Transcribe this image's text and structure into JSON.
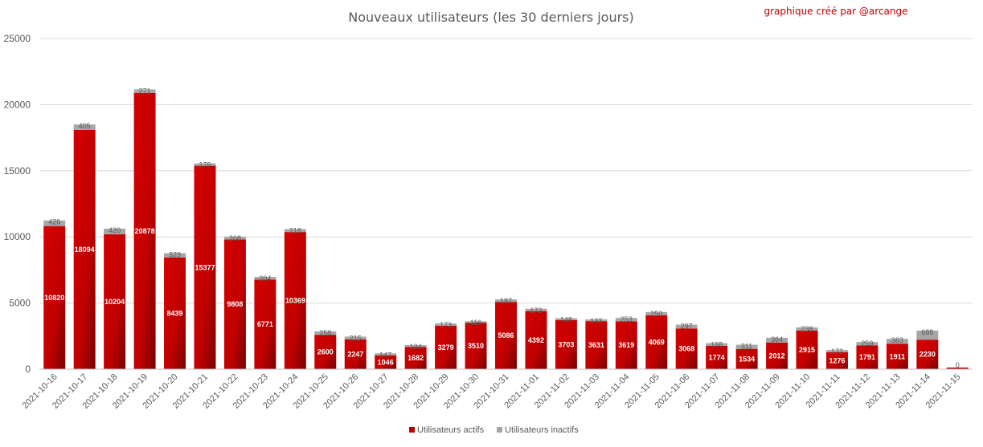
{
  "chart_data": {
    "type": "bar",
    "stacked": true,
    "title": "Nouveaux utilisateurs  (les 30 derniers  jours)",
    "annotation": "graphique créé par @arcange",
    "ylim": [
      0,
      25000
    ],
    "yticks": [
      0,
      5000,
      10000,
      15000,
      20000,
      25000
    ],
    "grid": true,
    "legend_position": "bottom",
    "categories": [
      "2021-10-16",
      "2021-10-17",
      "2021-10-18",
      "2021-10-19",
      "2021-10-20",
      "2021-10-21",
      "2021-10-22",
      "2021-10-23",
      "2021-10-24",
      "2021-10-25",
      "2021-10-26",
      "2021-10-27",
      "2021-10-28",
      "2021-10-29",
      "2021-10-30",
      "2021-10-31",
      "2021-11-01",
      "2021-11-02",
      "2021-11-03",
      "2021-11-04",
      "2021-11-05",
      "2021-11-06",
      "2021-11-07",
      "2021-11-08",
      "2021-11-09",
      "2021-11-10",
      "2021-11-11",
      "2021-11-12",
      "2021-11-13",
      "2021-11-14",
      "2021-11-15"
    ],
    "series": [
      {
        "name": "Utilisateurs actifs",
        "color": "#c00000",
        "values": [
          10820,
          18094,
          10204,
          20878,
          8439,
          15377,
          9808,
          6771,
          10369,
          2600,
          2247,
          1046,
          1682,
          3279,
          3510,
          5086,
          4392,
          3703,
          3631,
          3619,
          4069,
          3068,
          1774,
          1534,
          2012,
          2915,
          1276,
          1791,
          1911,
          2230,
          0
        ]
      },
      {
        "name": "Utilisateurs inactifs",
        "color": "#a6a6a6",
        "values": [
          426,
          405,
          420,
          271,
          329,
          179,
          208,
          204,
          218,
          258,
          215,
          147,
          134,
          173,
          116,
          187,
          172,
          148,
          133,
          253,
          250,
          297,
          188,
          311,
          364,
          238,
          172,
          259,
          383,
          688,
          0
        ]
      }
    ]
  }
}
